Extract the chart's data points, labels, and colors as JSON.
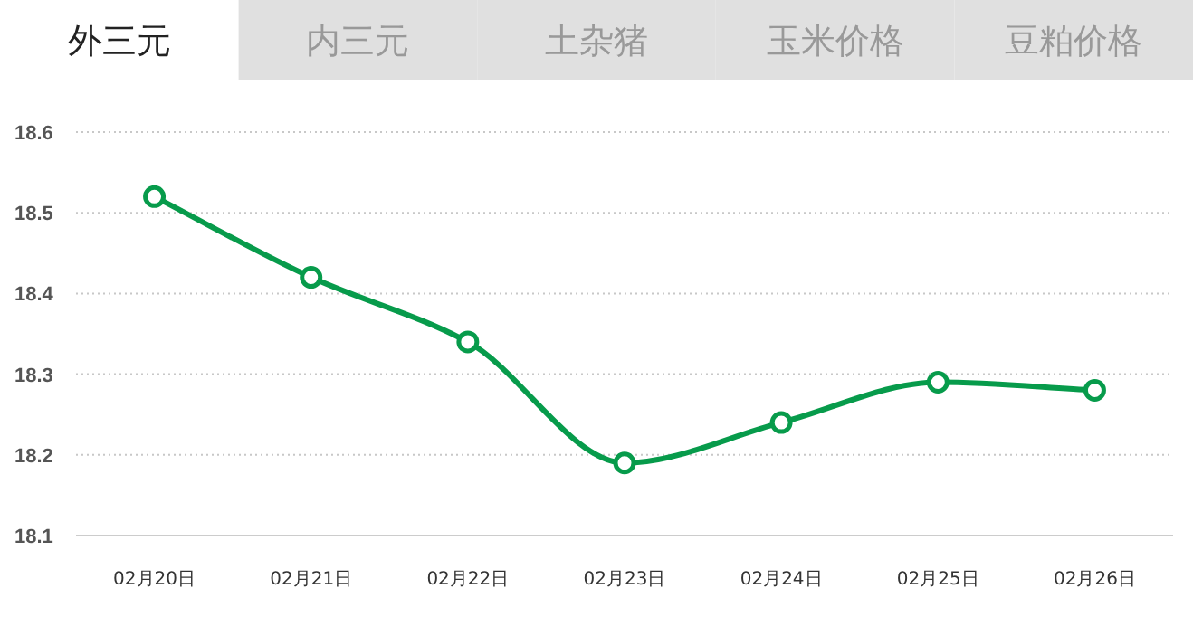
{
  "chart_data": {
    "type": "line",
    "annotations": [
      "外三元",
      "内三元",
      "土杂猪",
      "玉米价格",
      "豆粕价格"
    ],
    "categories": [
      "02月20日",
      "02月21日",
      "02月22日",
      "02月23日",
      "02月24日",
      "02月25日",
      "02月26日"
    ],
    "series": [
      {
        "color": "#079b4b",
        "values": [
          18.52,
          18.42,
          18.34,
          18.19,
          18.24,
          18.29,
          18.28
        ]
      }
    ],
    "ylim": [
      18.1,
      18.6
    ],
    "yticks": [
      18.1,
      18.2,
      18.3,
      18.4,
      18.5,
      18.6
    ],
    "grid": "y",
    "marker": "circle"
  }
}
